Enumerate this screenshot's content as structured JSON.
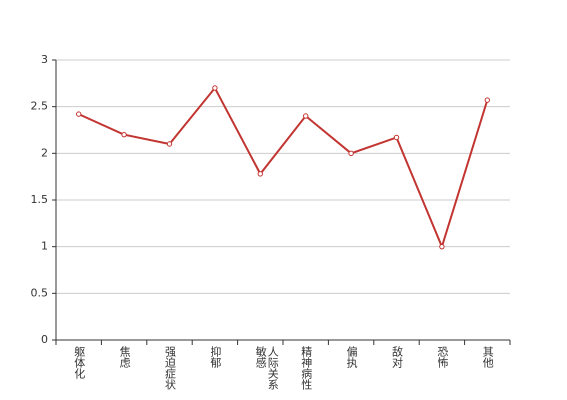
{
  "chart_data": {
    "type": "line",
    "categories": [
      "躯体化",
      "焦虑",
      "强迫症状",
      "抑郁",
      "人际关系敏感",
      "精神病性",
      "偏执",
      "敌对",
      "恐怖",
      "其他"
    ],
    "values": [
      2.42,
      2.2,
      2.1,
      2.7,
      1.78,
      2.4,
      2.0,
      2.17,
      1.0,
      2.57
    ],
    "color": "#c23531",
    "ylim": [
      0,
      3
    ],
    "yticks": [
      0,
      0.5,
      1,
      1.5,
      2,
      2.5,
      3
    ],
    "grid": true
  }
}
